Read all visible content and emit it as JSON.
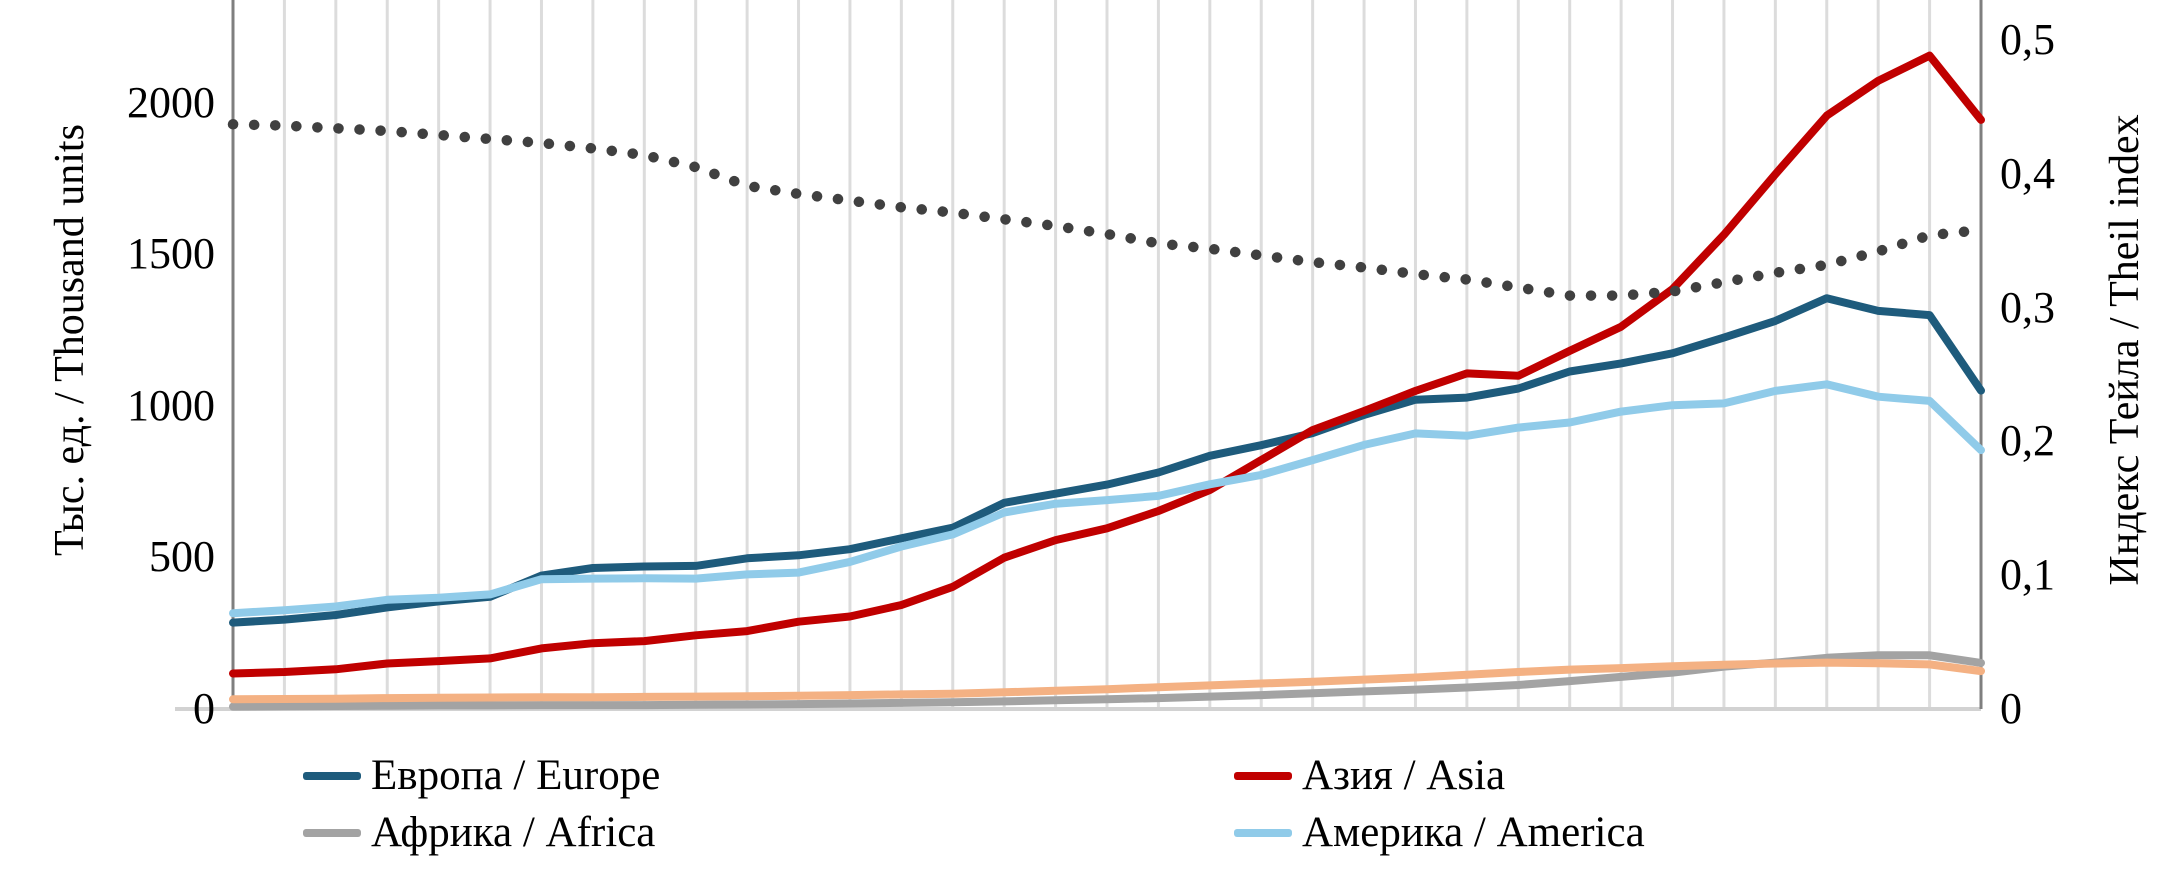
{
  "axes": {
    "left": {
      "title": "Тыс. ед. / Thousand units",
      "tick_labels": [
        "0",
        "500",
        "1000",
        "1500",
        "2000"
      ],
      "tick_values": [
        0,
        500,
        1000,
        1500,
        2000
      ]
    },
    "right": {
      "title": "Индекс Тейла / Theil index",
      "tick_labels": [
        "0",
        "0,1",
        "0,2",
        "0,3",
        "0,4",
        "0,5"
      ],
      "tick_values": [
        0,
        0.1,
        0.2,
        0.3,
        0.4,
        0.5
      ]
    },
    "x": {
      "tick_labels_visible": false,
      "point_count": 35,
      "gridline_count": 33
    }
  },
  "legend": [
    {
      "id": "europe",
      "label": "Европа / Europe",
      "color": "#1E5B7C",
      "column": 0,
      "row": 0
    },
    {
      "id": "asia",
      "label": "Азия / Asia",
      "color": "#C00000",
      "column": 1,
      "row": 0
    },
    {
      "id": "africa",
      "label": "Африка / Africa",
      "color": "#A3A3A3",
      "column": 0,
      "row": 1
    },
    {
      "id": "america",
      "label": "Америка / America",
      "color": "#90CBE9",
      "column": 1,
      "row": 1
    }
  ],
  "colors": {
    "europe": "#1E5B7C",
    "asia": "#C00000",
    "africa": "#A3A3A3",
    "america": "#90CBE9",
    "unlabeled_orange": "#F4B183",
    "theil_dotted": "#404040",
    "gridline": "#DCDCDC",
    "side_axis": "#7F7F7F",
    "bottom_axis": "#D2D2D2"
  },
  "chart_data": {
    "type": "line",
    "title": "",
    "x_labels": null,
    "x_points": 35,
    "left_axis_range": [
      0,
      2250
    ],
    "right_axis_range": [
      0,
      0.5
    ],
    "grid": "vertical-only",
    "legend_position": "bottom-two-columns",
    "series": [
      {
        "id": "europe",
        "legend_label": "Европа / Europe",
        "axis": "left",
        "style": "solid",
        "color": "#1E5B7C",
        "values": [
          285,
          295,
          310,
          335,
          355,
          370,
          440,
          465,
          470,
          472,
          497,
          507,
          527,
          563,
          598,
          680,
          710,
          740,
          780,
          835,
          870,
          910,
          970,
          1020,
          1027,
          1057,
          1113,
          1140,
          1173,
          1225,
          1280,
          1355,
          1313,
          1299,
          1050
        ]
      },
      {
        "id": "asia",
        "legend_label": "Азия / Asia",
        "axis": "left",
        "style": "solid",
        "color": "#C00000",
        "values": [
          117,
          122,
          131,
          150,
          158,
          167,
          200,
          217,
          224,
          243,
          257,
          288,
          305,
          343,
          403,
          499,
          557,
          596,
          653,
          722,
          821,
          920,
          983,
          1049,
          1107,
          1099,
          1181,
          1261,
          1385,
          1564,
          1764,
          1957,
          2072,
          2155,
          1943
        ]
      },
      {
        "id": "africa",
        "legend_label": "Африка / Africa",
        "axis": "left",
        "style": "solid",
        "color": "#A3A3A3",
        "values": [
          8,
          9,
          10,
          11,
          12,
          12,
          13,
          13,
          13,
          14,
          15,
          16,
          18,
          20,
          22,
          25,
          29,
          32,
          36,
          41,
          46,
          52,
          58,
          64,
          71,
          79,
          92,
          106,
          120,
          140,
          153,
          169,
          177,
          177,
          152
        ]
      },
      {
        "id": "america",
        "legend_label": "Америка / America",
        "axis": "left",
        "style": "solid",
        "color": "#90CBE9",
        "values": [
          316,
          326,
          338,
          360,
          367,
          378,
          428,
          430,
          431,
          430,
          444,
          450,
          485,
          536,
          576,
          648,
          677,
          689,
          703,
          741,
          772,
          821,
          871,
          909,
          901,
          928,
          945,
          981,
          1002,
          1008,
          1049,
          1071,
          1030,
          1016,
          854
        ]
      },
      {
        "id": "unlabeled-orange",
        "legend_label": null,
        "axis": "left",
        "style": "solid",
        "color": "#F4B183",
        "values": [
          32,
          33,
          34,
          36,
          37,
          38,
          39,
          39,
          40,
          41,
          42,
          44,
          46,
          48,
          50,
          55,
          60,
          65,
          72,
          78,
          84,
          90,
          97,
          104,
          113,
          122,
          130,
          135,
          141,
          146,
          150,
          153,
          151,
          147,
          125
        ]
      },
      {
        "id": "theil-index",
        "legend_label": null,
        "axis": "right",
        "style": "dotted",
        "color": "#404040",
        "values": [
          0.437,
          0.436,
          0.434,
          0.432,
          0.429,
          0.426,
          0.423,
          0.419,
          0.414,
          0.405,
          0.391,
          0.385,
          0.38,
          0.375,
          0.371,
          0.366,
          0.361,
          0.355,
          0.348,
          0.344,
          0.339,
          0.334,
          0.33,
          0.325,
          0.321,
          0.315,
          0.309,
          0.309,
          0.312,
          0.319,
          0.326,
          0.332,
          0.342,
          0.354,
          0.358
        ]
      }
    ]
  }
}
